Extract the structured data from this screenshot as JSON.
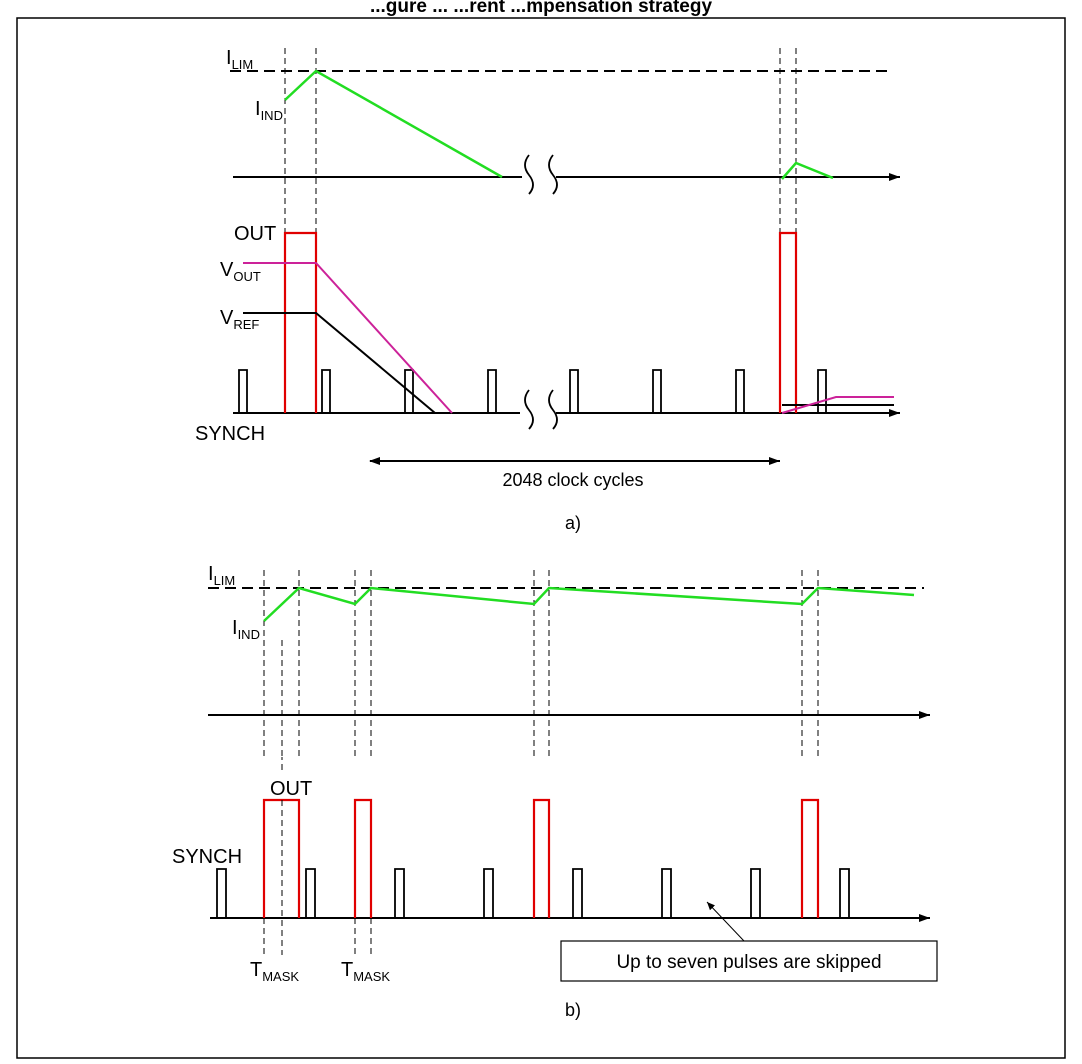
{
  "figure": {
    "title": "...gure ... ...rent ...mpensation strategy"
  },
  "panel_a": {
    "label_i_lim": "I",
    "label_i_lim_sub": "LIM",
    "label_i_ind": "I",
    "label_i_ind_sub": "IND",
    "label_out": "OUT",
    "label_v_out": "V",
    "label_v_out_sub": "OUT",
    "label_v_ref": "V",
    "label_v_ref_sub": "REF",
    "label_synch": "SYNCH",
    "span_text": "2048 clock cycles",
    "caption": "a)"
  },
  "panel_b": {
    "label_i_lim": "I",
    "label_i_lim_sub": "LIM",
    "label_i_ind": "I",
    "label_i_ind_sub": "IND",
    "label_out": "OUT",
    "label_synch": "SYNCH",
    "label_tmask_1": "T",
    "label_tmask_1_sub": "MASK",
    "label_tmask_2": "T",
    "label_tmask_2_sub": "MASK",
    "callout": "Up to seven pulses are skipped",
    "caption": "b)"
  },
  "colors": {
    "inductor_current": "#22dd22",
    "out_pulse": "#e00000",
    "v_out": "#cc2299",
    "v_ref": "#000000",
    "synch": "#000000"
  }
}
